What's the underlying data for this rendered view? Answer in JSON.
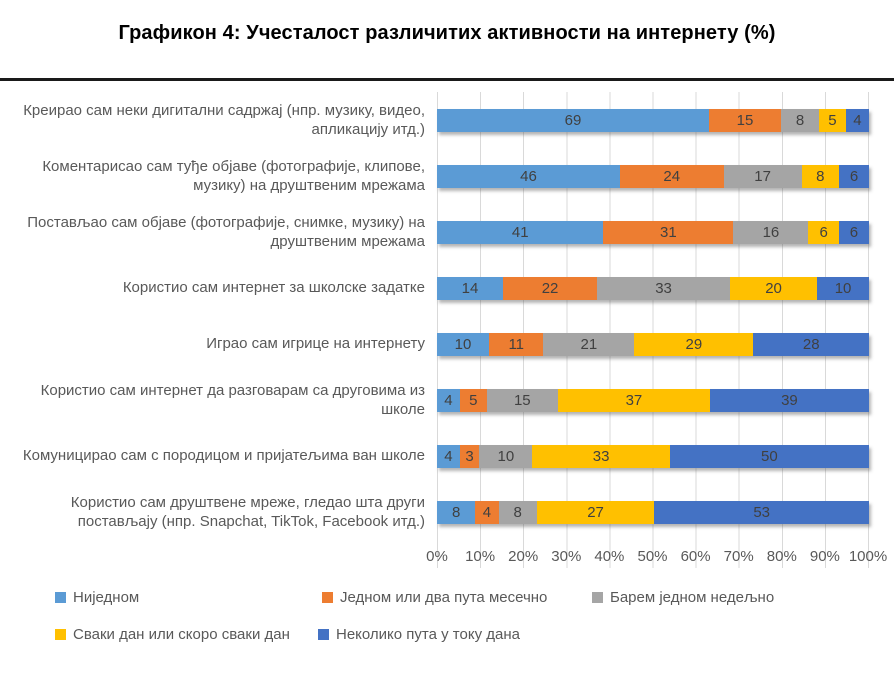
{
  "title": "Графикон 4: Учесталост различитих активности на интернету (%)",
  "colors": {
    "series_blue": "#5B9BD5",
    "series_orange": "#ED7D31",
    "series_gray": "#A5A5A5",
    "series_yellow": "#FFC000",
    "series_dark_blue": "#4472C4",
    "gridline": "#D9D9D9",
    "category_text": "#595959",
    "value_text": "#404040",
    "divider": "#1A1A1A"
  },
  "chart_data": {
    "type": "bar",
    "variant": "100%-stacked-horizontal",
    "title": "Графикон 4: Учесталост различитих активности на интернету (%)",
    "categories": [
      "Креирао сам неки дигитални садржај (нпр. музику, видео, апликацију итд.)",
      "Коментарисао сам туђе објаве (фотографије, клипове, музику) на друштвеним мрежама",
      "Постављао сам објаве (фотографије, снимке, музику) на друштвеним мрежама",
      "Користио сам интернет за школске задатке",
      "Играо сам игрице на интернету",
      "Користио сам интернет да разговарам са друговима из школе",
      "Комуницирао сам с породицом и пријатељима ван школе",
      "Користио сам друштвене мреже, гледао шта други постављају (нпр. Snapchat, TikTok, Facebook итд.)"
    ],
    "series": [
      {
        "name": "Ниједном",
        "color": "#5B9BD5",
        "values": [
          69,
          46,
          41,
          14,
          10,
          4,
          4,
          8
        ]
      },
      {
        "name": "Једном или два пута месечно",
        "color": "#ED7D31",
        "values": [
          15,
          24,
          31,
          22,
          11,
          5,
          3,
          4
        ]
      },
      {
        "name": "Барем једном недељно",
        "color": "#A5A5A5",
        "values": [
          8,
          17,
          16,
          33,
          21,
          15,
          10,
          8
        ]
      },
      {
        "name": "Сваки дан или скоро сваки дан",
        "color": "#FFC000",
        "values": [
          5,
          8,
          6,
          20,
          29,
          37,
          33,
          27
        ]
      },
      {
        "name": "Неколико пута у току дана",
        "color": "#4472C4",
        "values": [
          4,
          6,
          6,
          10,
          28,
          39,
          50,
          53
        ]
      }
    ],
    "x_ticks": [
      "0%",
      "10%",
      "20%",
      "30%",
      "40%",
      "50%",
      "60%",
      "70%",
      "80%",
      "90%",
      "100%"
    ],
    "xlim": [
      0,
      100
    ],
    "grid": true,
    "legend_position": "bottom",
    "value_labels": "inside-center"
  }
}
